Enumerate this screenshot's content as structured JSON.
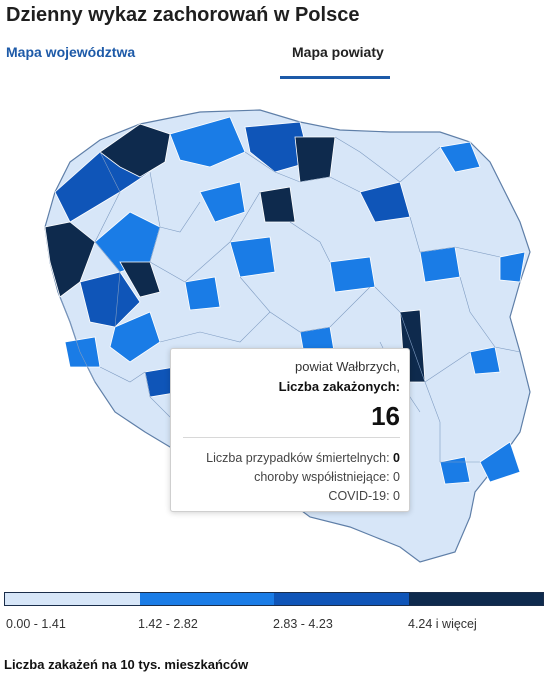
{
  "header": {
    "title": "Dzienny wykaz zachorowań w Polsce",
    "tabs": [
      {
        "label": "Mapa województwa",
        "active": false
      },
      {
        "label": "Mapa powiaty",
        "active": true
      }
    ]
  },
  "map": {
    "colors": {
      "base": "#d7e6f8",
      "stroke": "#6b8bb4",
      "c1": "#d7e6f8",
      "c2": "#1a7ce6",
      "c3": "#0f55b8",
      "c4": "#0e2a4d"
    },
    "tooltip": {
      "name": "powiat Wałbrzych,",
      "label": "Liczba zakażonych:",
      "value": "16",
      "deaths_label": "Liczba przypadków śmiertelnych:",
      "deaths_value": "0",
      "comorb_label": "choroby współistniejące:",
      "comorb_value": "0",
      "covid_label": "COVID-19:",
      "covid_value": "0"
    }
  },
  "legend": {
    "items": [
      {
        "range": "0.00 - 1.41",
        "color": "#d7e6f8"
      },
      {
        "range": "1.42 - 2.82",
        "color": "#1a7ce6"
      },
      {
        "range": "2.83 - 4.23",
        "color": "#0f55b8"
      },
      {
        "range": "4.24 i więcej",
        "color": "#0e2a4d"
      }
    ],
    "caption": "Liczba zakażeń na 10 tys. mieszkańców"
  }
}
